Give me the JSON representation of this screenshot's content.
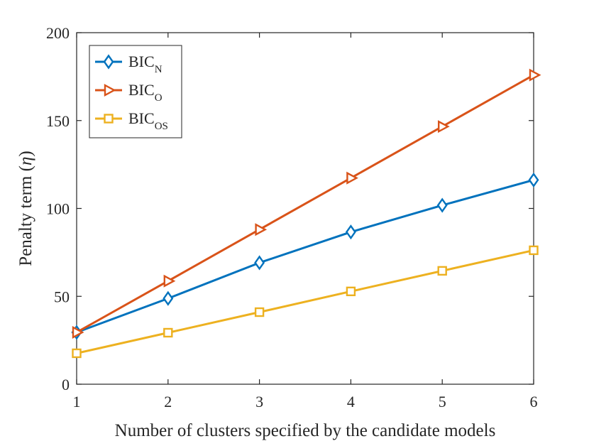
{
  "chart_data": {
    "type": "line",
    "title": "",
    "xlabel": "Number of clusters specified by the candidate models",
    "ylabel_prefix": "Penalty term (",
    "ylabel_symbol": "η",
    "ylabel_suffix": ")",
    "x": [
      1,
      2,
      3,
      4,
      5,
      6
    ],
    "xlim": [
      1,
      6
    ],
    "ylim": [
      0,
      200
    ],
    "xticks": [
      1,
      2,
      3,
      4,
      5,
      6
    ],
    "yticks": [
      0,
      50,
      100,
      150,
      200
    ],
    "grid": false,
    "legend_position": "top-left",
    "series": [
      {
        "name": "BIC_N",
        "label_main": "BIC",
        "label_sub": "N",
        "marker": "diamond",
        "color": "#0072BD",
        "values": [
          29.5,
          48.8,
          69.1,
          86.6,
          101.8,
          116.2
        ]
      },
      {
        "name": "BIC_O",
        "label_main": "BIC",
        "label_sub": "O",
        "marker": "triangle-right",
        "color": "#D95319",
        "values": [
          29.5,
          58.7,
          88.0,
          117.3,
          146.6,
          175.9
        ]
      },
      {
        "name": "BIC_OS",
        "label_main": "BIC",
        "label_sub": "OS",
        "marker": "square",
        "color": "#EDB120",
        "values": [
          17.6,
          29.3,
          41.0,
          52.8,
          64.5,
          76.2
        ]
      }
    ]
  }
}
